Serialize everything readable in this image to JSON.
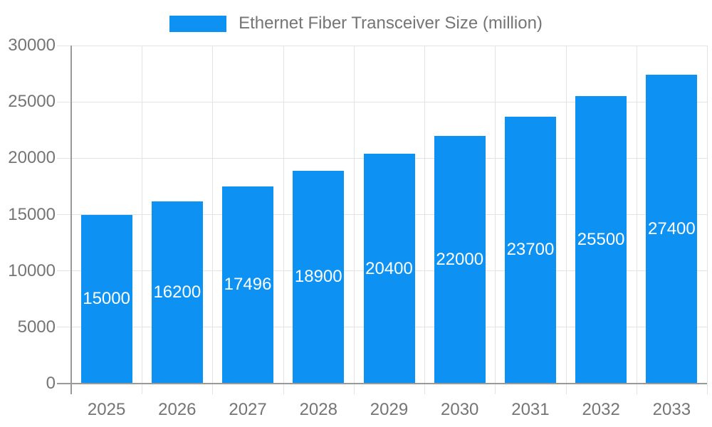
{
  "chart_data": {
    "type": "bar",
    "title": "Ethernet Fiber Transceiver Size (million)",
    "series_name": "Ethernet Fiber Transceiver Size (million)",
    "categories": [
      "2025",
      "2026",
      "2027",
      "2028",
      "2029",
      "2030",
      "2031",
      "2032",
      "2033"
    ],
    "values": [
      15000,
      16200,
      17496,
      18900,
      20400,
      22000,
      23700,
      25500,
      27400
    ],
    "xlabel": "",
    "ylabel": "",
    "ylim": [
      0,
      30000
    ],
    "yticks": [
      0,
      5000,
      10000,
      15000,
      20000,
      25000,
      30000
    ],
    "grid": true,
    "legend_position": "top-center",
    "bar_color": "#0D92F4",
    "grid_color": "#e3e3e3",
    "axis_color": "#999999",
    "text_color": "#757575",
    "value_label_color": "#ffffff"
  }
}
